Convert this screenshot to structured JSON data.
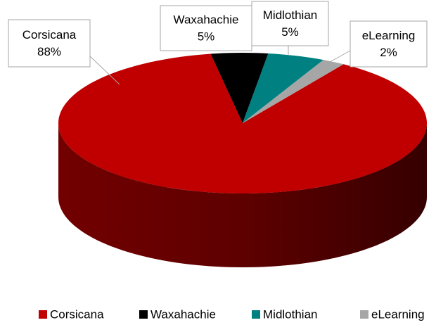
{
  "chart_data": {
    "type": "pie",
    "categories": [
      "Corsicana",
      "Waxahachie",
      "Midlothian",
      "eLearning"
    ],
    "values": [
      88,
      5,
      5,
      2
    ],
    "value_labels": [
      "88%",
      "5%",
      "5%",
      "2%"
    ],
    "colors": [
      "#c00000",
      "#000000",
      "#008080",
      "#a6a6a6"
    ],
    "legend": "bottom"
  }
}
